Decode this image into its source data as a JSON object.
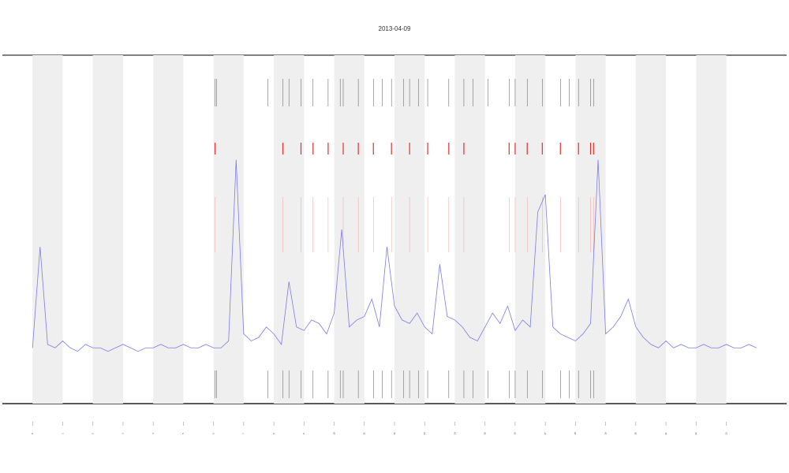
{
  "chart_data": {
    "type": "line",
    "title": "2013-04-09",
    "xlim": [
      -1,
      25
    ],
    "ylim": [
      0,
      100
    ],
    "xticks": [
      0,
      1,
      2,
      3,
      4,
      5,
      6,
      7,
      8,
      9,
      10,
      11,
      12,
      13,
      14,
      15,
      16,
      17,
      18,
      19,
      20,
      21,
      22,
      23
    ],
    "shade_bands": [
      [
        0,
        1
      ],
      [
        2,
        3
      ],
      [
        4,
        5
      ],
      [
        6,
        7
      ],
      [
        8,
        9
      ],
      [
        10,
        11
      ],
      [
        12,
        13
      ],
      [
        14,
        15
      ],
      [
        16,
        17
      ],
      [
        18,
        19
      ],
      [
        20,
        21
      ],
      [
        22,
        23
      ]
    ],
    "events": [
      6.05,
      6.1,
      7.8,
      8.3,
      8.5,
      8.9,
      9.3,
      9.8,
      10.2,
      10.3,
      10.8,
      11.3,
      11.6,
      11.9,
      12.3,
      12.5,
      12.8,
      13.1,
      13.8,
      14.3,
      14.6,
      15.1,
      15.8,
      16.0,
      16.4,
      16.9,
      17.5,
      17.8,
      18.1,
      18.5,
      18.6
    ],
    "alert_events": [
      6.05,
      8.3,
      8.9,
      9.3,
      9.8,
      10.3,
      10.8,
      11.3,
      11.9,
      12.5,
      13.1,
      13.8,
      14.3,
      15.8,
      16.0,
      16.4,
      16.9,
      17.5,
      18.1,
      18.5,
      18.6
    ],
    "series": [
      {
        "color": "#7b7be8",
        "x": [
          0,
          0.25,
          0.5,
          0.75,
          1,
          1.25,
          1.5,
          1.75,
          2,
          2.25,
          2.5,
          2.75,
          3,
          3.25,
          3.5,
          3.75,
          4,
          4.25,
          4.5,
          4.75,
          5,
          5.25,
          5.5,
          5.75,
          6,
          6.25,
          6.5,
          6.75,
          7,
          7.25,
          7.5,
          7.75,
          8,
          8.25,
          8.5,
          8.75,
          9,
          9.25,
          9.5,
          9.75,
          10,
          10.25,
          10.5,
          10.75,
          11,
          11.25,
          11.5,
          11.75,
          12,
          12.25,
          12.5,
          12.75,
          13,
          13.25,
          13.5,
          13.75,
          14,
          14.25,
          14.5,
          14.75,
          15,
          15.25,
          15.5,
          15.75,
          16,
          16.25,
          16.5,
          16.75,
          17,
          17.25,
          17.5,
          17.75,
          18,
          18.25,
          18.5,
          18.75,
          19,
          19.25,
          19.5,
          19.75,
          20,
          20.25,
          20.5,
          20.75,
          21,
          21.25,
          21.5,
          21.75,
          22,
          22.25,
          22.5,
          22.75,
          23,
          23.25,
          23.5,
          23.75,
          24
        ],
        "values": [
          16,
          45,
          17,
          16,
          18,
          16,
          15,
          17,
          16,
          16,
          15,
          16,
          17,
          16,
          15,
          16,
          16,
          17,
          16,
          16,
          17,
          16,
          16,
          17,
          16,
          16,
          18,
          70,
          20,
          18,
          19,
          22,
          20,
          17,
          35,
          22,
          21,
          24,
          23,
          20,
          26,
          50,
          22,
          24,
          25,
          30,
          22,
          45,
          28,
          24,
          23,
          26,
          22,
          20,
          40,
          25,
          24,
          22,
          19,
          18,
          22,
          26,
          23,
          28,
          21,
          24,
          22,
          55,
          60,
          22,
          20,
          19,
          18,
          20,
          23,
          70,
          20,
          22,
          25,
          30,
          22,
          19,
          17,
          16,
          18,
          16,
          17,
          16,
          16,
          17,
          16,
          16,
          17,
          16,
          16,
          17,
          16
        ]
      }
    ]
  }
}
